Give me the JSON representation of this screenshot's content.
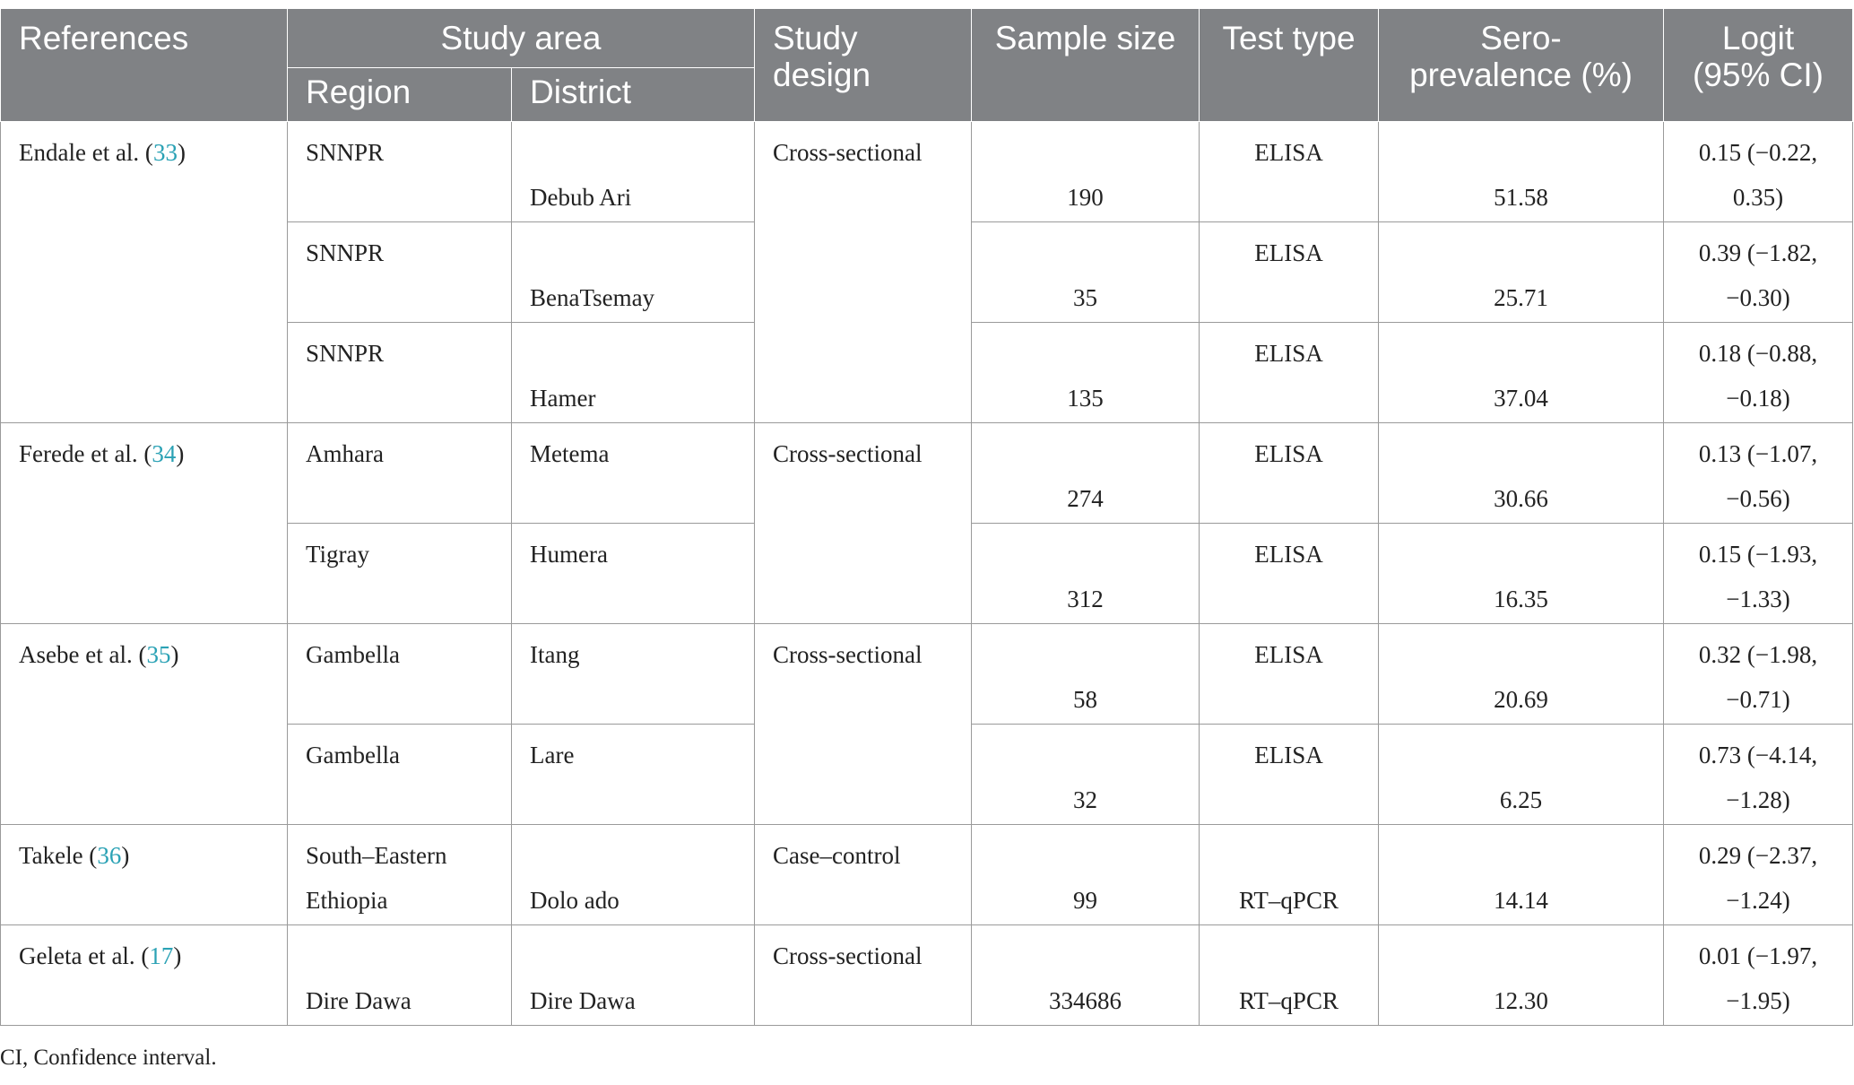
{
  "headers": {
    "references": "References",
    "study_area": "Study area",
    "region": "Region",
    "district": "District",
    "study_design_1": "Study",
    "study_design_2": "design",
    "sample_size": "Sample size",
    "test_type": "Test type",
    "sero_1": "Sero-",
    "sero_2": "prevalence (%)",
    "logit_1": "Logit",
    "logit_2": "(95% CI)"
  },
  "references": [
    {
      "author": "Endale et al. (",
      "ref": "33",
      "close": ")",
      "design": "Cross-sectional"
    },
    {
      "author": "Ferede et al. (",
      "ref": "34",
      "close": ")",
      "design": "Cross-sectional"
    },
    {
      "author": "Asebe et al. (",
      "ref": "35",
      "close": ")",
      "design": "Cross-sectional"
    },
    {
      "author": "Takele (",
      "ref": "36",
      "close": ")",
      "design": "Case–control"
    },
    {
      "author": "Geleta et al. (",
      "ref": "17",
      "close": ")",
      "design": "Cross-sectional"
    }
  ],
  "rows": [
    {
      "region_l1": "SNNPR",
      "region_l2": "",
      "district_l1": "",
      "district_l2": "Debub Ari",
      "sample": "190",
      "test_l1": "ELISA",
      "test_l2": "",
      "sero": "51.58",
      "logit_l1": "0.15 (−0.22,",
      "logit_l2": "0.35)"
    },
    {
      "region_l1": "SNNPR",
      "region_l2": "",
      "district_l1": "",
      "district_l2": "BenaTsemay",
      "sample": "35",
      "test_l1": "ELISA",
      "test_l2": "",
      "sero": "25.71",
      "logit_l1": "0.39 (−1.82,",
      "logit_l2": "−0.30)"
    },
    {
      "region_l1": "SNNPR",
      "region_l2": "",
      "district_l1": "",
      "district_l2": "Hamer",
      "sample": "135",
      "test_l1": "ELISA",
      "test_l2": "",
      "sero": "37.04",
      "logit_l1": "0.18 (−0.88,",
      "logit_l2": "−0.18)"
    },
    {
      "region_l1": "Amhara",
      "region_l2": "",
      "district_l1": "Metema",
      "district_l2": "",
      "sample": "274",
      "test_l1": "ELISA",
      "test_l2": "",
      "sero": "30.66",
      "logit_l1": "0.13 (−1.07,",
      "logit_l2": "−0.56)"
    },
    {
      "region_l1": "Tigray",
      "region_l2": "",
      "district_l1": "Humera",
      "district_l2": "",
      "sample": "312",
      "test_l1": "ELISA",
      "test_l2": "",
      "sero": "16.35",
      "logit_l1": "0.15 (−1.93,",
      "logit_l2": "−1.33)"
    },
    {
      "region_l1": "Gambella",
      "region_l2": "",
      "district_l1": "Itang",
      "district_l2": "",
      "sample": "58",
      "test_l1": "ELISA",
      "test_l2": "",
      "sero": "20.69",
      "logit_l1": "0.32 (−1.98,",
      "logit_l2": "−0.71)"
    },
    {
      "region_l1": "Gambella",
      "region_l2": "",
      "district_l1": "Lare",
      "district_l2": "",
      "sample": "32",
      "test_l1": "ELISA",
      "test_l2": "",
      "sero": "6.25",
      "logit_l1": "0.73 (−4.14,",
      "logit_l2": "−1.28)"
    },
    {
      "region_l1": "South–Eastern",
      "region_l2": "Ethiopia",
      "district_l1": "",
      "district_l2": "Dolo ado",
      "sample": "99",
      "test_l1": "",
      "test_l2": "RT–qPCR",
      "sero": "14.14",
      "logit_l1": "0.29 (−2.37,",
      "logit_l2": "−1.24)"
    },
    {
      "region_l1": "",
      "region_l2": "Dire Dawa",
      "district_l1": "",
      "district_l2": "Dire Dawa",
      "sample": "334686",
      "test_l1": "",
      "test_l2": "RT–qPCR",
      "sero": "12.30",
      "logit_l1": "0.01 (−1.97,",
      "logit_l2": "−1.95)"
    }
  ],
  "footnote": "CI, Confidence interval."
}
